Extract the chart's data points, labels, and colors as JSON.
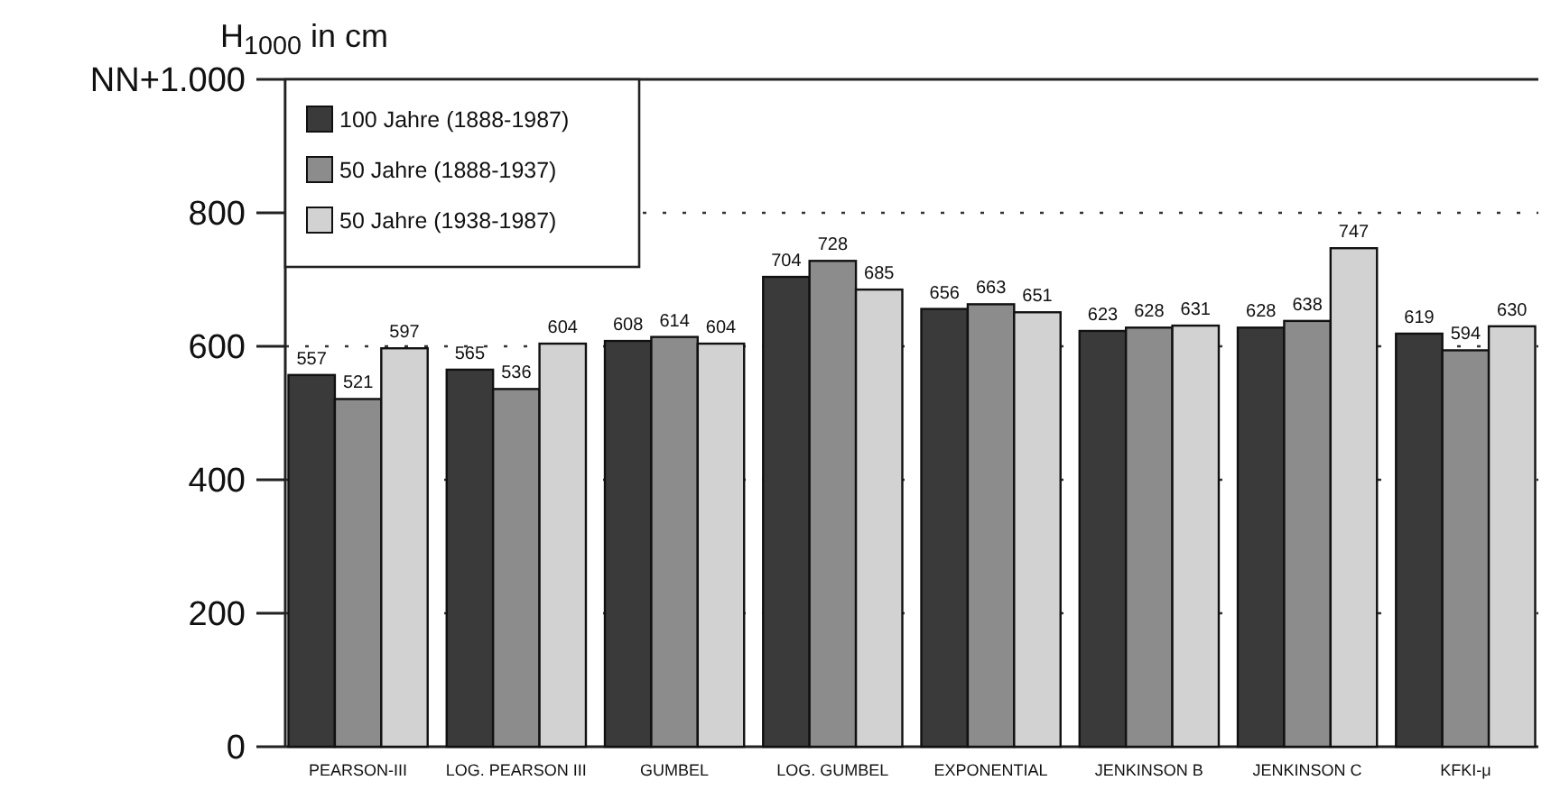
{
  "chart_data": {
    "type": "bar",
    "ylabel": "H$_{1000}$ in cm",
    "categories": [
      "PEARSON-III",
      "LOG. PEARSON III",
      "GUMBEL",
      "LOG. GUMBEL",
      "EXPONENTIAL",
      "JENKINSON B",
      "JENKINSON C",
      "KFKI-μ"
    ],
    "series": [
      {
        "name": "100 Jahre (1888-1987)",
        "color": "#3a3a3a",
        "values": [
          557,
          565,
          608,
          704,
          656,
          623,
          628,
          619
        ]
      },
      {
        "name": "50 Jahre (1888-1937)",
        "color": "#8c8c8c",
        "values": [
          521,
          536,
          614,
          728,
          663,
          628,
          638,
          594
        ]
      },
      {
        "name": "50 Jahre (1938-1987)",
        "color": "#d2d2d2",
        "values": [
          597,
          604,
          604,
          685,
          651,
          631,
          747,
          630
        ]
      }
    ],
    "ylim": [
      0,
      1000
    ],
    "yticks": [
      0,
      200,
      400,
      600,
      800,
      {
        "value": 1000,
        "label": "NN+1.000"
      }
    ],
    "grid": "y",
    "legend": "top left",
    "data_labels": true
  }
}
